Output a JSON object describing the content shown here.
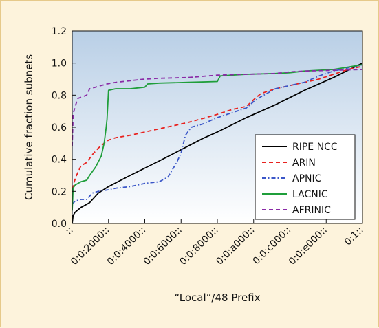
{
  "chart_data": {
    "type": "line",
    "title": "",
    "xlabel": "“Local”/48 Prefix",
    "ylabel": "Cumulative fraction subnets",
    "xlim": [
      0,
      1
    ],
    "ylim": [
      0,
      1.2
    ],
    "yticks": [
      0.0,
      0.2,
      0.4,
      0.6,
      0.8,
      1.0,
      1.2
    ],
    "ytick_labels": [
      "0.0",
      "0.2",
      "0.4",
      "0.6",
      "0.8",
      "1.0",
      "1.2"
    ],
    "xticks": [
      0,
      0.125,
      0.25,
      0.375,
      0.5,
      0.625,
      0.75,
      0.875,
      1
    ],
    "xtick_labels": [
      "::",
      "0:0:2000::",
      "0:0:4000::",
      "0:0:6000::",
      "0:0:8000::",
      "0:0:a000::",
      "0:0:c000::",
      "0:0:e000::",
      "0:1::"
    ],
    "grid": false,
    "legend_position": "bottom-right",
    "background": "gradient light-blue to white",
    "series": [
      {
        "name": "RIPE NCC",
        "color": "#000000",
        "dash": "solid",
        "points": [
          [
            0,
            0.0
          ],
          [
            0.003,
            0.05
          ],
          [
            0.01,
            0.07
          ],
          [
            0.03,
            0.1
          ],
          [
            0.06,
            0.13
          ],
          [
            0.09,
            0.19
          ],
          [
            0.125,
            0.23
          ],
          [
            0.2,
            0.3
          ],
          [
            0.25,
            0.345
          ],
          [
            0.3,
            0.39
          ],
          [
            0.375,
            0.46
          ],
          [
            0.45,
            0.53
          ],
          [
            0.5,
            0.57
          ],
          [
            0.6,
            0.66
          ],
          [
            0.7,
            0.74
          ],
          [
            0.8,
            0.83
          ],
          [
            0.9,
            0.91
          ],
          [
            1.0,
            1.0
          ]
        ]
      },
      {
        "name": "ARIN",
        "color": "#e8221f",
        "dash": "dashed",
        "points": [
          [
            0,
            0.17
          ],
          [
            0.005,
            0.25
          ],
          [
            0.015,
            0.3
          ],
          [
            0.03,
            0.36
          ],
          [
            0.05,
            0.38
          ],
          [
            0.07,
            0.43
          ],
          [
            0.09,
            0.47
          ],
          [
            0.11,
            0.5
          ],
          [
            0.125,
            0.52
          ],
          [
            0.15,
            0.535
          ],
          [
            0.2,
            0.55
          ],
          [
            0.25,
            0.57
          ],
          [
            0.3,
            0.59
          ],
          [
            0.35,
            0.61
          ],
          [
            0.4,
            0.63
          ],
          [
            0.45,
            0.655
          ],
          [
            0.5,
            0.68
          ],
          [
            0.55,
            0.71
          ],
          [
            0.6,
            0.73
          ],
          [
            0.63,
            0.78
          ],
          [
            0.65,
            0.81
          ],
          [
            0.7,
            0.84
          ],
          [
            0.75,
            0.86
          ],
          [
            0.8,
            0.88
          ],
          [
            0.85,
            0.9
          ],
          [
            0.9,
            0.93
          ],
          [
            0.95,
            0.96
          ],
          [
            1.0,
            0.98
          ]
        ]
      },
      {
        "name": "APNIC",
        "color": "#3a56c8",
        "dash": "dashdot",
        "points": [
          [
            0,
            0.12
          ],
          [
            0.01,
            0.14
          ],
          [
            0.03,
            0.15
          ],
          [
            0.05,
            0.15
          ],
          [
            0.07,
            0.19
          ],
          [
            0.09,
            0.2
          ],
          [
            0.125,
            0.21
          ],
          [
            0.15,
            0.22
          ],
          [
            0.2,
            0.23
          ],
          [
            0.25,
            0.25
          ],
          [
            0.3,
            0.26
          ],
          [
            0.33,
            0.29
          ],
          [
            0.36,
            0.38
          ],
          [
            0.375,
            0.44
          ],
          [
            0.39,
            0.55
          ],
          [
            0.41,
            0.6
          ],
          [
            0.45,
            0.62
          ],
          [
            0.5,
            0.66
          ],
          [
            0.55,
            0.69
          ],
          [
            0.6,
            0.72
          ],
          [
            0.625,
            0.76
          ],
          [
            0.65,
            0.79
          ],
          [
            0.7,
            0.84
          ],
          [
            0.75,
            0.86
          ],
          [
            0.8,
            0.88
          ],
          [
            0.85,
            0.92
          ],
          [
            0.9,
            0.95
          ],
          [
            0.95,
            0.97
          ],
          [
            1.0,
            0.99
          ]
        ]
      },
      {
        "name": "LACNIC",
        "color": "#1f9e3a",
        "dash": "solid",
        "points": [
          [
            0,
            0.08
          ],
          [
            0.003,
            0.22
          ],
          [
            0.01,
            0.24
          ],
          [
            0.03,
            0.26
          ],
          [
            0.05,
            0.27
          ],
          [
            0.06,
            0.3
          ],
          [
            0.08,
            0.35
          ],
          [
            0.1,
            0.42
          ],
          [
            0.11,
            0.5
          ],
          [
            0.117,
            0.6
          ],
          [
            0.12,
            0.65
          ],
          [
            0.125,
            0.83
          ],
          [
            0.15,
            0.84
          ],
          [
            0.2,
            0.84
          ],
          [
            0.25,
            0.85
          ],
          [
            0.26,
            0.87
          ],
          [
            0.3,
            0.875
          ],
          [
            0.4,
            0.88
          ],
          [
            0.5,
            0.885
          ],
          [
            0.51,
            0.92
          ],
          [
            0.55,
            0.925
          ],
          [
            0.6,
            0.93
          ],
          [
            0.7,
            0.935
          ],
          [
            0.75,
            0.94
          ],
          [
            0.8,
            0.95
          ],
          [
            0.9,
            0.96
          ],
          [
            1.0,
            0.99
          ]
        ]
      },
      {
        "name": "AFRINIC",
        "color": "#8a2aa6",
        "dash": "dashed",
        "points": [
          [
            0,
            0.48
          ],
          [
            0.003,
            0.68
          ],
          [
            0.01,
            0.73
          ],
          [
            0.02,
            0.78
          ],
          [
            0.05,
            0.8
          ],
          [
            0.06,
            0.84
          ],
          [
            0.08,
            0.85
          ],
          [
            0.1,
            0.86
          ],
          [
            0.12,
            0.87
          ],
          [
            0.15,
            0.88
          ],
          [
            0.2,
            0.89
          ],
          [
            0.25,
            0.9
          ],
          [
            0.3,
            0.905
          ],
          [
            0.4,
            0.91
          ],
          [
            0.5,
            0.925
          ],
          [
            0.6,
            0.93
          ],
          [
            0.7,
            0.935
          ],
          [
            0.75,
            0.945
          ],
          [
            0.8,
            0.95
          ],
          [
            0.9,
            0.955
          ],
          [
            1.0,
            0.96
          ]
        ]
      }
    ]
  }
}
